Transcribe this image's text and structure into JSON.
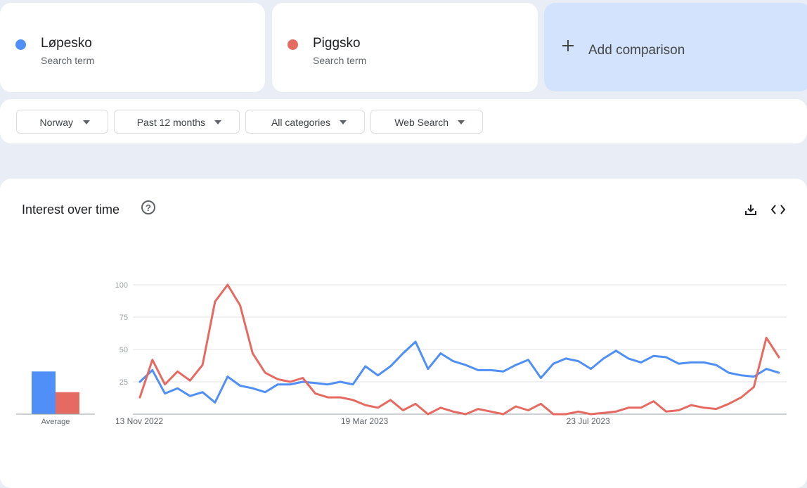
{
  "terms": [
    {
      "name": "Løpesko",
      "subtitle": "Search term",
      "color": "#4f8ff7"
    },
    {
      "name": "Piggsko",
      "subtitle": "Search term",
      "color": "#e66a62"
    }
  ],
  "add_comparison": {
    "label": "Add comparison",
    "icon": "plus-icon"
  },
  "filters": {
    "region": "Norway",
    "time": "Past 12 months",
    "category": "All categories",
    "property": "Web Search"
  },
  "chart_card": {
    "title": "Interest over time",
    "help_icon": "help-circle-icon",
    "download_icon": "download-icon",
    "embed_icon": "code-embed-icon"
  },
  "chart_data": {
    "type": "line",
    "y_ticks": [
      25,
      50,
      75,
      100
    ],
    "ylim": [
      0,
      100
    ],
    "x_tick_labels": [
      {
        "index": 0,
        "label": "13 Nov 2022"
      },
      {
        "index": 18,
        "label": "19 Mar 2023"
      },
      {
        "index": 36,
        "label": "23 Jul 2023"
      }
    ],
    "grid": true,
    "series": [
      {
        "name": "Løpesko",
        "color": "#4f8ff7",
        "values": [
          25,
          34,
          16,
          20,
          14,
          17,
          9,
          29,
          22,
          20,
          17,
          23,
          23,
          25,
          24,
          23,
          25,
          23,
          37,
          30,
          37,
          47,
          56,
          35,
          47,
          41,
          38,
          34,
          34,
          33,
          38,
          42,
          28,
          39,
          43,
          41,
          35,
          43,
          49,
          43,
          40,
          45,
          44,
          39,
          40,
          40,
          38,
          32,
          30,
          29,
          35,
          32
        ]
      },
      {
        "name": "Piggsko",
        "color": "#e66a62",
        "values": [
          13,
          42,
          23,
          33,
          26,
          38,
          87,
          100,
          84,
          47,
          32,
          27,
          25,
          28,
          16,
          13,
          13,
          11,
          7,
          5,
          11,
          3,
          8,
          0,
          5,
          2,
          0,
          4,
          2,
          0,
          6,
          3,
          8,
          0,
          0,
          2,
          0,
          1,
          2,
          5,
          5,
          10,
          2,
          3,
          7,
          5,
          4,
          8,
          13,
          21,
          59,
          44
        ]
      }
    ],
    "average": {
      "label": "Average",
      "values": [
        33,
        17
      ]
    }
  }
}
